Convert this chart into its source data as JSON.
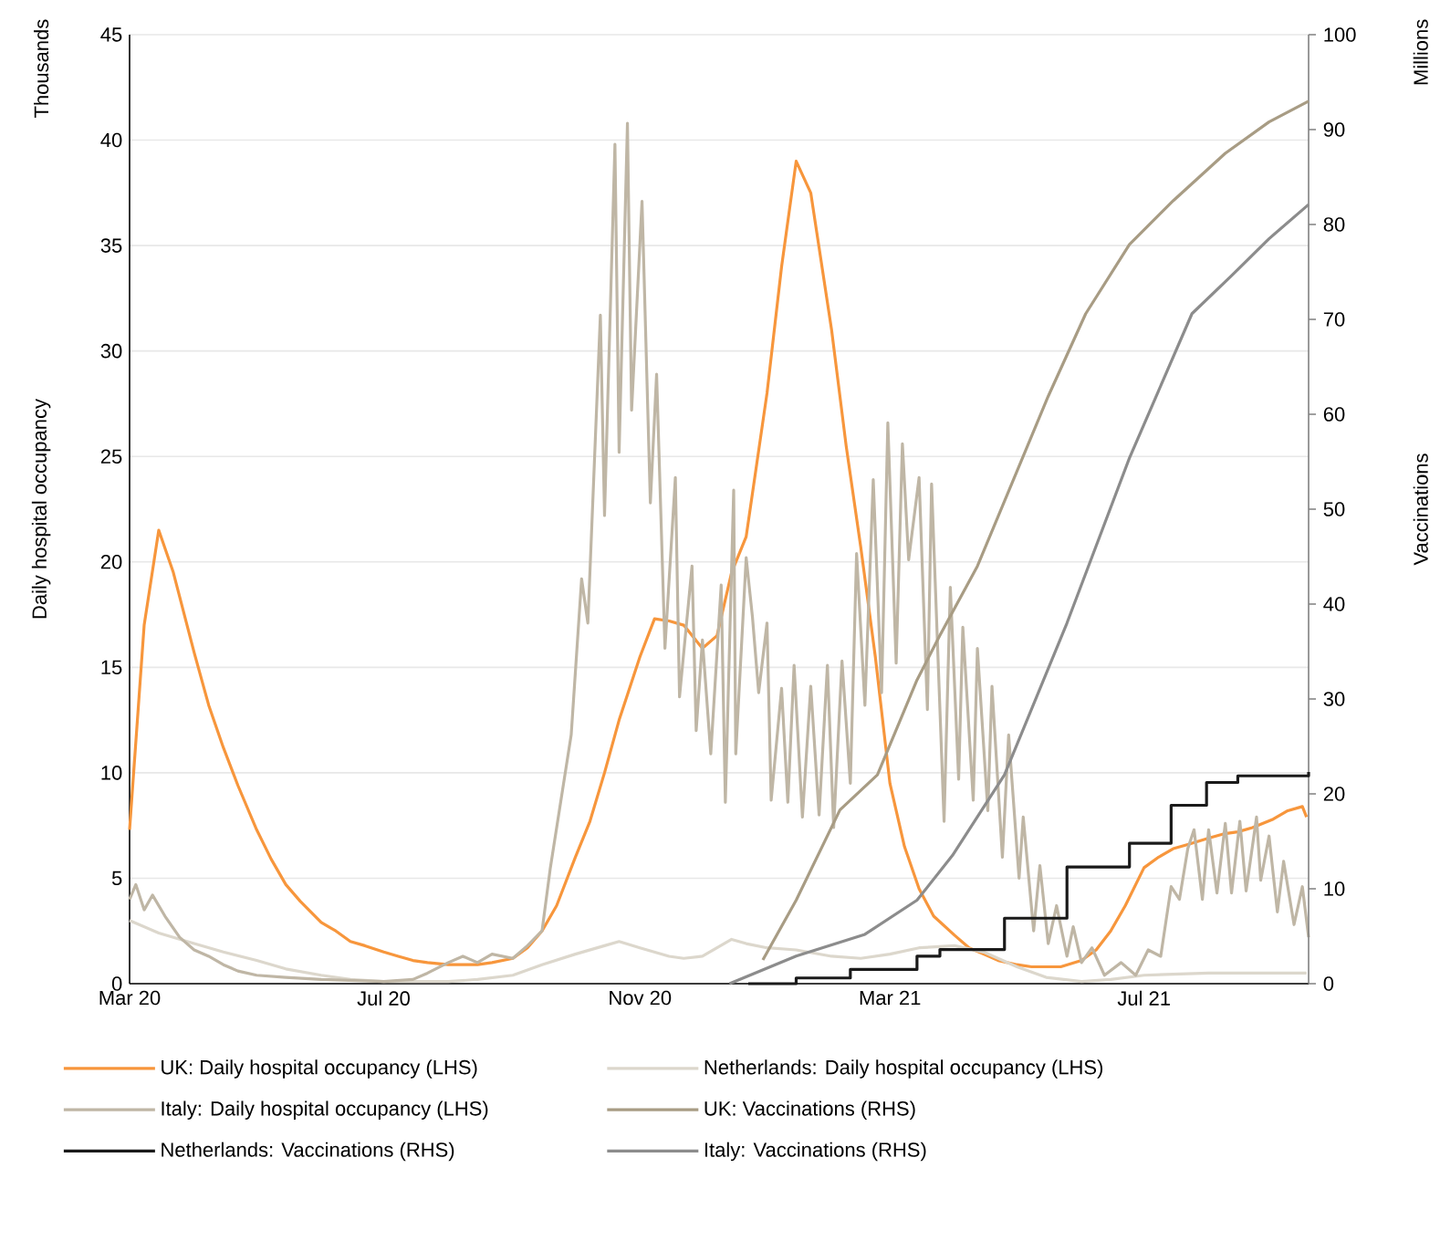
{
  "chart_data": {
    "type": "line",
    "xlim": [
      "2020-03-01",
      "2021-09-18"
    ],
    "xticks": [
      {
        "value": "2020-03-01",
        "label": "Mar 20"
      },
      {
        "value": "2020-07-01",
        "label": "Jul 20"
      },
      {
        "value": "2020-11-01",
        "label": "Nov 20"
      },
      {
        "value": "2021-03-01",
        "label": "Mar 21"
      },
      {
        "value": "2021-07-01",
        "label": "Jul 21"
      }
    ],
    "ylim": [
      0,
      45
    ],
    "yticks": [
      0,
      5,
      10,
      15,
      20,
      25,
      30,
      35,
      40,
      45
    ],
    "y2lim": [
      0,
      100
    ],
    "y2ticks": [
      0,
      10,
      20,
      30,
      40,
      50,
      60,
      70,
      80,
      90,
      100
    ],
    "ylabel": "Daily hospital occupancy",
    "y2label": "Vaccinations",
    "annotations": [
      "Thousands",
      "Millions"
    ],
    "grid": "y",
    "legend": "bottom",
    "series": [
      {
        "name": "UK: Daily hospital occupancy (LHS)",
        "color": "#f7963c",
        "x": [
          "2020-03-01",
          "2020-03-08",
          "2020-03-15",
          "2020-03-22",
          "2020-04-01",
          "2020-04-08",
          "2020-04-15",
          "2020-04-22",
          "2020-05-01",
          "2020-05-08",
          "2020-05-15",
          "2020-05-22",
          "2020-06-01",
          "2020-06-08",
          "2020-06-15",
          "2020-06-22",
          "2020-07-01",
          "2020-07-08",
          "2020-07-15",
          "2020-07-22",
          "2020-08-01",
          "2020-08-08",
          "2020-08-15",
          "2020-08-22",
          "2020-09-01",
          "2020-09-08",
          "2020-09-15",
          "2020-09-22",
          "2020-10-01",
          "2020-10-08",
          "2020-10-15",
          "2020-10-22",
          "2020-11-01",
          "2020-11-08",
          "2020-11-15",
          "2020-11-22",
          "2020-12-01",
          "2020-12-08",
          "2020-12-15",
          "2020-12-22",
          "2021-01-01",
          "2021-01-08",
          "2021-01-15",
          "2021-01-22",
          "2021-02-01",
          "2021-02-08",
          "2021-02-15",
          "2021-02-22",
          "2021-03-01",
          "2021-03-08",
          "2021-03-15",
          "2021-03-22",
          "2021-04-01",
          "2021-04-08",
          "2021-04-15",
          "2021-04-22",
          "2021-05-01",
          "2021-05-08",
          "2021-05-15",
          "2021-05-22",
          "2021-06-01",
          "2021-06-08",
          "2021-06-15",
          "2021-06-22",
          "2021-07-01",
          "2021-07-08",
          "2021-07-15",
          "2021-07-22",
          "2021-08-01",
          "2021-08-08",
          "2021-08-15",
          "2021-08-22",
          "2021-09-01",
          "2021-09-08",
          "2021-09-15",
          "2021-09-17"
        ],
        "values": [
          7.3,
          17,
          21.5,
          19.5,
          15.7,
          13.2,
          11.2,
          9.4,
          7.3,
          5.9,
          4.7,
          3.9,
          2.9,
          2.5,
          2.0,
          1.8,
          1.5,
          1.3,
          1.1,
          1.0,
          0.9,
          0.9,
          0.9,
          1.0,
          1.2,
          1.7,
          2.5,
          3.7,
          6.0,
          7.7,
          10.0,
          12.5,
          15.5,
          17.3,
          17.2,
          17.0,
          15.9,
          16.5,
          19.5,
          21.2,
          28,
          34,
          39,
          37.5,
          31,
          25.5,
          20.7,
          15.5,
          9.5,
          6.5,
          4.5,
          3.2,
          2.3,
          1.7,
          1.4,
          1.1,
          0.9,
          0.8,
          0.8,
          0.8,
          1.1,
          1.6,
          2.5,
          3.7,
          5.5,
          6.0,
          6.4,
          6.6,
          6.9,
          7.1,
          7.2,
          7.4,
          7.8,
          8.2,
          8.4,
          7.9
        ]
      },
      {
        "name": "Netherlands: Daily hospital occupancy (LHS)",
        "color": "#dcd7cc",
        "x": [
          "2020-03-01",
          "2020-03-15",
          "2020-04-01",
          "2020-04-15",
          "2020-05-01",
          "2020-05-15",
          "2020-06-01",
          "2020-06-15",
          "2020-07-01",
          "2020-07-15",
          "2020-08-01",
          "2020-08-15",
          "2020-09-01",
          "2020-09-15",
          "2020-10-01",
          "2020-10-15",
          "2020-10-22",
          "2020-11-01",
          "2020-11-15",
          "2020-11-22",
          "2020-12-01",
          "2020-12-15",
          "2020-12-22",
          "2021-01-01",
          "2021-01-15",
          "2021-02-01",
          "2021-02-15",
          "2021-03-01",
          "2021-03-15",
          "2021-04-01",
          "2021-04-15",
          "2021-05-01",
          "2021-05-15",
          "2021-06-01",
          "2021-06-15",
          "2021-07-01",
          "2021-08-01",
          "2021-09-17"
        ],
        "values": [
          3.0,
          2.4,
          1.9,
          1.5,
          1.1,
          0.7,
          0.4,
          0.2,
          0.1,
          0.1,
          0.1,
          0.2,
          0.4,
          0.9,
          1.4,
          1.8,
          2.0,
          1.7,
          1.3,
          1.2,
          1.3,
          2.1,
          1.9,
          1.7,
          1.6,
          1.3,
          1.2,
          1.4,
          1.7,
          1.8,
          1.5,
          0.8,
          0.3,
          0.1,
          0.2,
          0.4,
          0.5,
          0.5
        ]
      },
      {
        "name": "Italy: Daily hospital occupancy (LHS)",
        "color": "#bfb6a5",
        "x": [
          "2020-03-01",
          "2020-03-04",
          "2020-03-08",
          "2020-03-12",
          "2020-03-18",
          "2020-03-25",
          "2020-04-01",
          "2020-04-08",
          "2020-04-15",
          "2020-04-22",
          "2020-05-01",
          "2020-05-15",
          "2020-06-01",
          "2020-07-01",
          "2020-07-15",
          "2020-07-22",
          "2020-08-01",
          "2020-08-08",
          "2020-08-15",
          "2020-08-22",
          "2020-09-01",
          "2020-09-08",
          "2020-09-15",
          "2020-09-19",
          "2020-09-29",
          "2020-10-04",
          "2020-10-07",
          "2020-10-13",
          "2020-10-15",
          "2020-10-20",
          "2020-10-22",
          "2020-10-26",
          "2020-10-28",
          "2020-11-02",
          "2020-11-06",
          "2020-11-09",
          "2020-11-13",
          "2020-11-18",
          "2020-11-20",
          "2020-11-26",
          "2020-11-28",
          "2020-12-01",
          "2020-12-05",
          "2020-12-10",
          "2020-12-12",
          "2020-12-16",
          "2020-12-17",
          "2020-12-22",
          "2020-12-25",
          "2020-12-28",
          "2021-01-01",
          "2021-01-03",
          "2021-01-08",
          "2021-01-11",
          "2021-01-14",
          "2021-01-18",
          "2021-01-22",
          "2021-01-26",
          "2021-01-30",
          "2021-02-02",
          "2021-02-06",
          "2021-02-10",
          "2021-02-13",
          "2021-02-17",
          "2021-02-21",
          "2021-02-25",
          "2021-02-28",
          "2021-03-04",
          "2021-03-07",
          "2021-03-10",
          "2021-03-15",
          "2021-03-19",
          "2021-03-21",
          "2021-03-27",
          "2021-03-30",
          "2021-04-03",
          "2021-04-05",
          "2021-04-10",
          "2021-04-12",
          "2021-04-17",
          "2021-04-19",
          "2021-04-24",
          "2021-04-27",
          "2021-05-02",
          "2021-05-04",
          "2021-05-09",
          "2021-05-12",
          "2021-05-16",
          "2021-05-20",
          "2021-05-25",
          "2021-05-28",
          "2021-06-01",
          "2021-06-06",
          "2021-06-12",
          "2021-06-20",
          "2021-06-27",
          "2021-07-03",
          "2021-07-09",
          "2021-07-14",
          "2021-07-18",
          "2021-07-22",
          "2021-07-25",
          "2021-07-29",
          "2021-08-01",
          "2021-08-05",
          "2021-08-09",
          "2021-08-12",
          "2021-08-16",
          "2021-08-19",
          "2021-08-24",
          "2021-08-26",
          "2021-08-30",
          "2021-09-03",
          "2021-09-06",
          "2021-09-11",
          "2021-09-15",
          "2021-09-18"
        ],
        "values": [
          4.0,
          4.7,
          3.5,
          4.2,
          3.2,
          2.2,
          1.6,
          1.3,
          0.9,
          0.6,
          0.4,
          0.3,
          0.2,
          0.1,
          0.2,
          0.5,
          1.0,
          1.3,
          1.0,
          1.4,
          1.2,
          1.8,
          2.5,
          5.5,
          11.8,
          19.2,
          17.1,
          31.7,
          22.2,
          39.8,
          25.2,
          40.8,
          27.2,
          37.1,
          22.8,
          28.9,
          15.9,
          24,
          13.6,
          19.8,
          12,
          16.3,
          10.9,
          18.9,
          8.6,
          23.4,
          10.9,
          20.2,
          17.4,
          13.8,
          17.1,
          8.7,
          14,
          8.6,
          15.1,
          7.9,
          14.1,
          8.0,
          15.1,
          7.4,
          15.3,
          9.5,
          20.4,
          13.2,
          23.9,
          13.8,
          26.6,
          15.2,
          25.6,
          20.1,
          24,
          13,
          23.7,
          7.7,
          18.8,
          9.7,
          16.9,
          8.7,
          15.9,
          8.2,
          14.1,
          6.0,
          11.8,
          5.0,
          7.9,
          2.5,
          5.6,
          1.9,
          3.7,
          1.3,
          2.7,
          1.0,
          1.7,
          0.4,
          1.0,
          0.4,
          1.6,
          1.3,
          4.6,
          4.0,
          6.4,
          7.3,
          4.0,
          7.3,
          4.3,
          7.6,
          4.3,
          7.7,
          4.4,
          7.9,
          4.9,
          7.0,
          3.4,
          5.8,
          2.8,
          4.6,
          2.2
        ]
      },
      {
        "name": "UK: Vaccinations (RHS)",
        "color": "#a89c84",
        "axis": "y2",
        "x": [
          "2020-12-30",
          "2021-01-15",
          "2021-02-05",
          "2021-02-23",
          "2021-03-14",
          "2021-03-25",
          "2021-04-12",
          "2021-05-01",
          "2021-05-16",
          "2021-06-03",
          "2021-06-24",
          "2021-07-15",
          "2021-08-09",
          "2021-08-30",
          "2021-09-18"
        ],
        "values": [
          2.5,
          8.8,
          18.3,
          22,
          32,
          36.7,
          44,
          54,
          61.9,
          70.6,
          77.9,
          82.5,
          87.5,
          90.8,
          93
        ]
      },
      {
        "name": "Netherlands: Vaccinations (RHS)",
        "color": "#1a1a1a",
        "axis": "y2",
        "type": "step",
        "x": [
          "2020-12-23",
          "2021-01-15",
          "2021-02-10",
          "2021-03-14",
          "2021-03-25",
          "2021-04-25",
          "2021-05-25",
          "2021-06-24",
          "2021-07-14",
          "2021-07-31",
          "2021-08-15",
          "2021-09-18"
        ],
        "values": [
          0,
          0.6,
          1.5,
          2.9,
          3.6,
          6.9,
          12.3,
          14.8,
          18.8,
          21.2,
          21.9,
          22.3
        ]
      },
      {
        "name": "Italy: Vaccinations (RHS)",
        "color": "#8c8c8c",
        "axis": "y2",
        "x": [
          "2020-12-14",
          "2021-01-15",
          "2021-02-17",
          "2021-03-14",
          "2021-03-31",
          "2021-04-25",
          "2021-05-25",
          "2021-06-24",
          "2021-07-24",
          "2021-08-12",
          "2021-08-30",
          "2021-09-18"
        ],
        "values": [
          0,
          2.9,
          5.2,
          8.8,
          13.5,
          22,
          38,
          55.4,
          70.6,
          74.6,
          78.5,
          82.1
        ]
      }
    ]
  }
}
